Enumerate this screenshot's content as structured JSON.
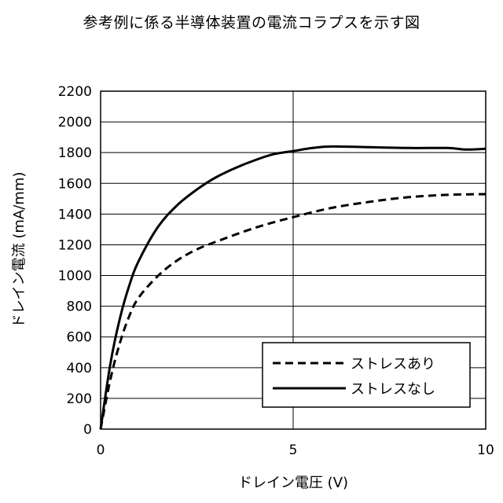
{
  "figure": {
    "title": "参考例に係る半導体装置の電流コラプスを示す図"
  },
  "chart_data": {
    "type": "line",
    "title": "参考例に係る半導体装置の電流コラプスを示す図",
    "xlabel": "ドレイン電圧 (V)",
    "ylabel": "ドレイン電流 (mA/mm)",
    "xlim": [
      0,
      10
    ],
    "ylim": [
      0,
      2200
    ],
    "xticks": [
      0,
      5,
      10
    ],
    "yticks": [
      0,
      200,
      400,
      600,
      800,
      1000,
      1200,
      1400,
      1600,
      1800,
      2000,
      2200
    ],
    "x_grid": true,
    "y_grid": true,
    "legend_position": "bottom-right",
    "series": [
      {
        "name": "ストレスあり",
        "style": "dashed",
        "x": [
          0,
          0.25,
          0.5,
          0.75,
          1.0,
          1.5,
          2.0,
          2.5,
          3.0,
          4.0,
          5.0,
          6.0,
          7.0,
          8.0,
          9.0,
          10.0
        ],
        "y": [
          0,
          320,
          560,
          740,
          860,
          1000,
          1100,
          1170,
          1220,
          1310,
          1380,
          1440,
          1480,
          1510,
          1525,
          1530
        ]
      },
      {
        "name": "ストレスなし",
        "style": "solid",
        "x": [
          0,
          0.25,
          0.5,
          0.75,
          1.0,
          1.5,
          2.0,
          2.5,
          3.0,
          3.5,
          4.0,
          4.5,
          5.0,
          5.5,
          6.0,
          7.0,
          8.0,
          9.0,
          9.5,
          10.0
        ],
        "y": [
          0,
          420,
          720,
          940,
          1100,
          1320,
          1460,
          1560,
          1640,
          1700,
          1750,
          1790,
          1810,
          1830,
          1840,
          1835,
          1830,
          1830,
          1820,
          1825
        ]
      }
    ]
  }
}
